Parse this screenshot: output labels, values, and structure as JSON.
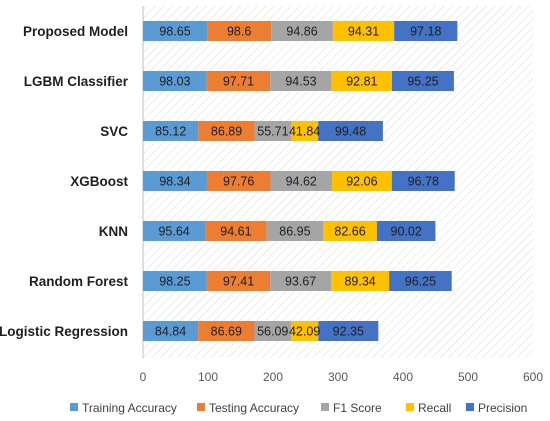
{
  "chart_data": {
    "type": "bar",
    "orientation": "horizontal",
    "stacked": true,
    "categories": [
      "Proposed Model",
      "LGBM Classifier",
      "SVC",
      "XGBoost",
      "KNN",
      "Random Forest",
      "Logistic Regression"
    ],
    "series": [
      {
        "name": "Training Accuracy",
        "color": "#5b9bd5",
        "values": [
          98.65,
          98.03,
          85.12,
          98.34,
          95.64,
          98.25,
          84.84
        ]
      },
      {
        "name": "Testing Accuracy",
        "color": "#ed7d31",
        "values": [
          98.6,
          97.71,
          86.89,
          97.76,
          94.61,
          97.41,
          86.69
        ]
      },
      {
        "name": "F1 Score",
        "color": "#a5a5a5",
        "values": [
          94.86,
          94.53,
          55.71,
          94.62,
          86.95,
          93.67,
          56.09
        ]
      },
      {
        "name": "Recall",
        "color": "#ffc000",
        "values": [
          94.31,
          92.81,
          41.84,
          92.06,
          82.66,
          89.34,
          42.09
        ]
      },
      {
        "name": "Precision",
        "color": "#4472c4",
        "values": [
          97.18,
          95.25,
          99.48,
          96.78,
          90.02,
          96.25,
          92.35
        ]
      }
    ],
    "xlim": [
      0,
      600
    ],
    "xticks": [
      0,
      100,
      200,
      300,
      400,
      500,
      600
    ],
    "xtick_labels": [
      "0",
      "100",
      "200",
      "300",
      "400",
      "500",
      "600"
    ],
    "xlabel": "",
    "ylabel": "",
    "title": "",
    "grid": false,
    "legend_position": "bottom"
  }
}
